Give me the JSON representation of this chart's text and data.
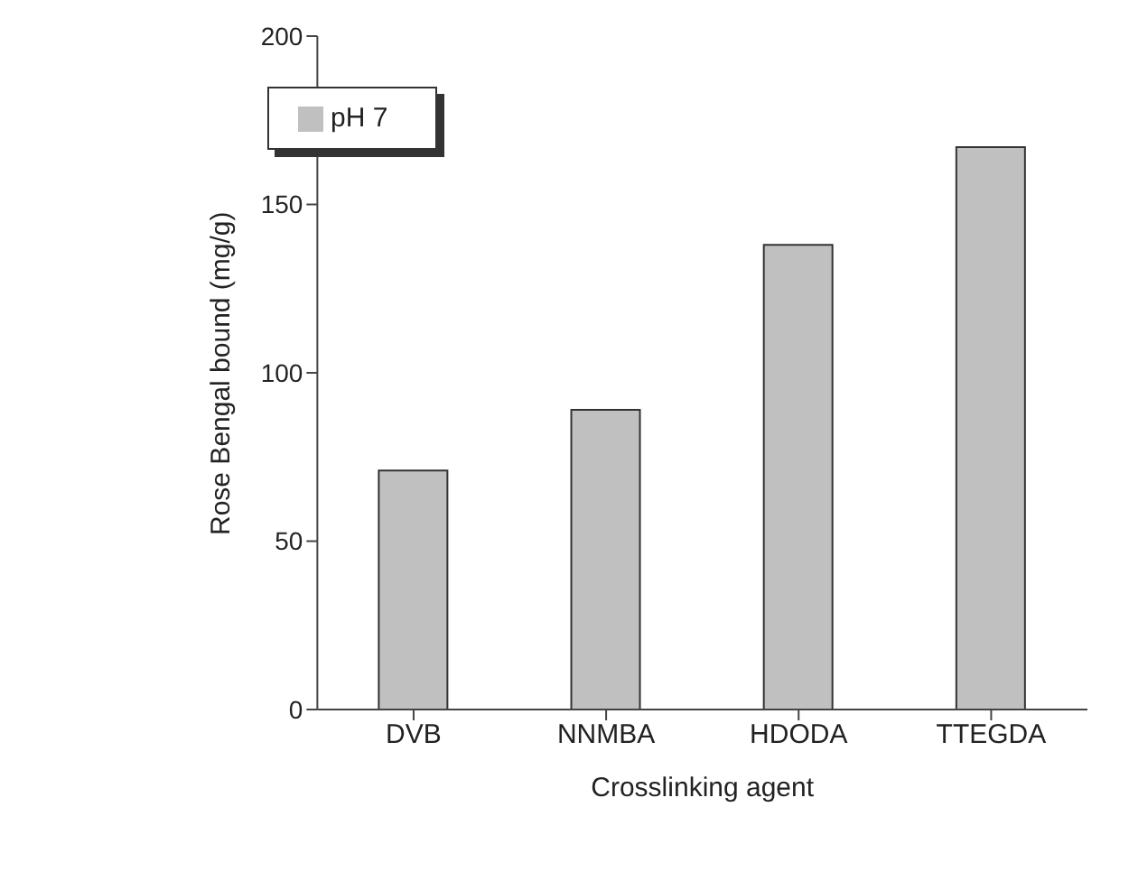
{
  "chart_data": {
    "type": "bar",
    "xlabel": "Crosslinking agent",
    "ylabel": "Rose Bengal bound (mg/g)",
    "categories": [
      "DVB",
      "NNMBA",
      "HDODA",
      "TTEGDA"
    ],
    "series": [
      {
        "name": "pH 7",
        "color": "#c0c0c0",
        "values": [
          71,
          89,
          138,
          167
        ]
      }
    ],
    "ylim": [
      0,
      200
    ],
    "yticks": [
      0,
      50,
      100,
      150,
      200
    ],
    "grid": false,
    "legend": "top left"
  }
}
